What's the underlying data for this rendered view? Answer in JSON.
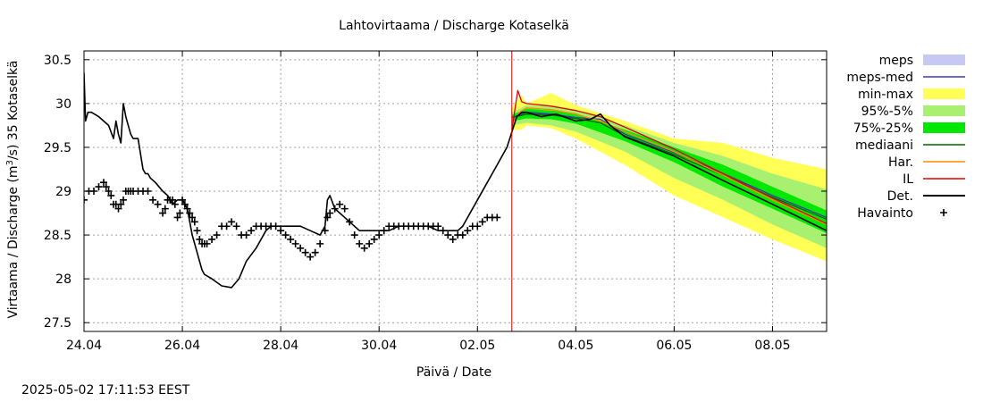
{
  "chart_data": {
    "type": "line",
    "title": "Lahtovirtaama / Discharge  Kotaselkä",
    "xlabel": "Päivä / Date",
    "ylabel_prefix": "Virtaama / Discharge (m",
    "ylabel_sup": "3",
    "ylabel_suffix": "/s)  35 Kotaselkä",
    "timestamp": "2025-05-02 17:11:53 EEST",
    "x_unit": "days since 24.04 00:00",
    "xlim": [
      0,
      15.1
    ],
    "ylim": [
      27.4,
      30.6
    ],
    "x_ticks": [
      {
        "v": 0,
        "label": "24.04"
      },
      {
        "v": 2,
        "label": "26.04"
      },
      {
        "v": 4,
        "label": "28.04"
      },
      {
        "v": 6,
        "label": "30.04"
      },
      {
        "v": 8,
        "label": "02.05"
      },
      {
        "v": 10,
        "label": "04.05"
      },
      {
        "v": 12,
        "label": "06.05"
      },
      {
        "v": 14,
        "label": "08.05"
      }
    ],
    "y_ticks": [
      {
        "v": 27.5,
        "label": "27.5"
      },
      {
        "v": 28,
        "label": "28"
      },
      {
        "v": 28.5,
        "label": "28.5"
      },
      {
        "v": 29,
        "label": "29"
      },
      {
        "v": 29.5,
        "label": "29.5"
      },
      {
        "v": 30,
        "label": "30"
      },
      {
        "v": 30.5,
        "label": "30.5"
      }
    ],
    "now_x": 8.7,
    "legend": [
      {
        "key": "meps",
        "label": "meps",
        "kind": "band",
        "color": "#c8c8f4"
      },
      {
        "key": "meps_med",
        "label": "meps-med",
        "kind": "line",
        "color": "#3a3ab0"
      },
      {
        "key": "minmax",
        "label": "min-max",
        "kind": "band",
        "color": "#ffff55"
      },
      {
        "key": "p95_5",
        "label": "95%-5%",
        "kind": "band",
        "color": "#a8f070"
      },
      {
        "key": "p75_25",
        "label": "75%-25%",
        "kind": "band",
        "color": "#00e800"
      },
      {
        "key": "mediaani",
        "label": "mediaani",
        "kind": "line",
        "color": "#006400"
      },
      {
        "key": "har",
        "label": "Har.",
        "kind": "line",
        "color": "#ff8c00"
      },
      {
        "key": "il",
        "label": "IL",
        "kind": "line",
        "color": "#e00000"
      },
      {
        "key": "det",
        "label": "Det.",
        "kind": "line",
        "color": "#000000"
      },
      {
        "key": "havainto",
        "label": "Havainto",
        "kind": "marker",
        "color": "#000000"
      }
    ],
    "bands": {
      "minmax": {
        "x": [
          8.7,
          8.9,
          9.0,
          9.5,
          10.0,
          11.0,
          12.0,
          13.0,
          14.0,
          15.1
        ],
        "low": [
          29.7,
          29.7,
          29.75,
          29.72,
          29.6,
          29.3,
          28.95,
          28.7,
          28.45,
          28.2
        ],
        "high": [
          29.95,
          30.1,
          30.0,
          30.12,
          29.98,
          29.8,
          29.6,
          29.55,
          29.38,
          29.25
        ]
      },
      "p95_5": {
        "x": [
          8.7,
          9.0,
          9.5,
          10.0,
          11.0,
          12.0,
          13.0,
          14.0,
          15.1
        ],
        "low": [
          29.75,
          29.78,
          29.75,
          29.68,
          29.45,
          29.15,
          28.9,
          28.62,
          28.35
        ],
        "high": [
          29.9,
          29.98,
          29.97,
          29.93,
          29.75,
          29.55,
          29.4,
          29.2,
          29.02
        ]
      },
      "p75_25": {
        "x": [
          8.7,
          9.0,
          9.5,
          10.0,
          11.0,
          12.0,
          13.0,
          14.0,
          15.1
        ],
        "low": [
          29.8,
          29.83,
          29.82,
          29.77,
          29.57,
          29.33,
          29.05,
          28.8,
          28.52
        ],
        "high": [
          29.87,
          29.94,
          29.92,
          29.89,
          29.7,
          29.5,
          29.3,
          29.05,
          28.78
        ]
      }
    },
    "series": [
      {
        "key": "mediaani",
        "x": [
          8.7,
          9.0,
          9.5,
          10.0,
          10.5,
          11.0,
          12.0,
          13.0,
          14.0,
          15.1
        ],
        "y": [
          29.84,
          29.88,
          29.87,
          29.83,
          29.78,
          29.63,
          29.42,
          29.18,
          28.93,
          28.68
        ]
      },
      {
        "key": "meps_med",
        "x": [
          8.7,
          9.0,
          9.5,
          10.0,
          10.5,
          11.0,
          12.0,
          13.0,
          14.0,
          15.1
        ],
        "y": [
          29.84,
          29.9,
          29.88,
          29.84,
          29.82,
          29.65,
          29.44,
          29.2,
          28.95,
          28.7
        ]
      },
      {
        "key": "har",
        "x": [
          8.7,
          8.85,
          9.0,
          9.5,
          10.0,
          10.5,
          11.0,
          12.0,
          13.0,
          14.0,
          15.1
        ],
        "y": [
          29.7,
          29.9,
          29.95,
          29.93,
          29.88,
          29.8,
          29.68,
          29.45,
          29.18,
          28.9,
          28.62
        ]
      },
      {
        "key": "il",
        "x": [
          8.7,
          8.82,
          8.9,
          9.0,
          9.5,
          10.0,
          10.5,
          11.0,
          12.0,
          13.0,
          14.0,
          15.1
        ],
        "y": [
          29.7,
          30.15,
          30.02,
          30.0,
          29.97,
          29.92,
          29.85,
          29.73,
          29.48,
          29.2,
          28.92,
          28.63
        ]
      },
      {
        "key": "det",
        "x": [
          0.0,
          0.03,
          0.08,
          0.15,
          0.3,
          0.5,
          0.6,
          0.65,
          0.7,
          0.75,
          0.8,
          0.85,
          0.9,
          0.95,
          1.0,
          1.1,
          1.2,
          1.25,
          1.3,
          1.35,
          1.45,
          1.6,
          1.7,
          1.8,
          1.9,
          2.0,
          2.1,
          2.2,
          2.3,
          2.35,
          2.4,
          2.45,
          2.6,
          2.8,
          3.0,
          3.15,
          3.3,
          3.5,
          3.6,
          3.7,
          3.8,
          4.0,
          4.2,
          4.4,
          4.6,
          4.8,
          4.9,
          4.95,
          5.0,
          5.1,
          5.2,
          5.4,
          5.6,
          5.8,
          6.0,
          6.2,
          6.4,
          6.6,
          6.8,
          7.0,
          7.2,
          7.4,
          7.6,
          7.7,
          7.8,
          8.0,
          8.2,
          8.4,
          8.6,
          8.8,
          8.9,
          9.0,
          9.3,
          9.6,
          10.0,
          10.3,
          10.5,
          10.7,
          11.0,
          12.0,
          13.0,
          14.0,
          15.1
        ],
        "y": [
          30.35,
          29.8,
          29.9,
          29.9,
          29.85,
          29.75,
          29.6,
          29.8,
          29.65,
          29.55,
          30.0,
          29.85,
          29.75,
          29.65,
          29.6,
          29.6,
          29.25,
          29.2,
          29.2,
          29.15,
          29.1,
          29.0,
          28.95,
          28.85,
          28.9,
          28.9,
          28.8,
          28.5,
          28.3,
          28.2,
          28.1,
          28.05,
          28.0,
          27.92,
          27.9,
          28.0,
          28.2,
          28.35,
          28.45,
          28.55,
          28.6,
          28.6,
          28.6,
          28.6,
          28.55,
          28.5,
          28.6,
          28.9,
          28.95,
          28.8,
          28.75,
          28.65,
          28.55,
          28.55,
          28.55,
          28.55,
          28.6,
          28.6,
          28.6,
          28.6,
          28.55,
          28.55,
          28.55,
          28.6,
          28.7,
          28.9,
          29.1,
          29.3,
          29.5,
          29.85,
          29.9,
          29.9,
          29.85,
          29.88,
          29.8,
          29.82,
          29.88,
          29.75,
          29.62,
          29.4,
          29.12,
          28.85,
          28.55
        ]
      }
    ],
    "havainto": {
      "x": [
        0.0,
        0.1,
        0.2,
        0.3,
        0.4,
        0.45,
        0.5,
        0.55,
        0.6,
        0.65,
        0.7,
        0.75,
        0.8,
        0.85,
        0.9,
        0.95,
        1.0,
        1.1,
        1.2,
        1.3,
        1.4,
        1.5,
        1.6,
        1.65,
        1.7,
        1.75,
        1.8,
        1.85,
        1.9,
        1.95,
        2.0,
        2.05,
        2.1,
        2.15,
        2.2,
        2.25,
        2.3,
        2.35,
        2.4,
        2.45,
        2.5,
        2.6,
        2.7,
        2.8,
        2.9,
        3.0,
        3.1,
        3.2,
        3.3,
        3.4,
        3.5,
        3.6,
        3.7,
        3.8,
        3.9,
        4.0,
        4.1,
        4.2,
        4.3,
        4.4,
        4.5,
        4.6,
        4.7,
        4.8,
        4.9,
        4.95,
        5.0,
        5.1,
        5.2,
        5.3,
        5.4,
        5.5,
        5.6,
        5.7,
        5.8,
        5.9,
        6.0,
        6.1,
        6.2,
        6.3,
        6.4,
        6.5,
        6.6,
        6.7,
        6.8,
        6.9,
        7.0,
        7.1,
        7.2,
        7.3,
        7.4,
        7.5,
        7.6,
        7.7,
        7.8,
        7.9,
        8.0,
        8.1,
        8.2,
        8.3,
        8.4
      ],
      "y": [
        28.9,
        29.0,
        29.0,
        29.05,
        29.1,
        29.05,
        29.0,
        28.95,
        28.85,
        28.85,
        28.8,
        28.85,
        28.9,
        29.0,
        29.0,
        29.0,
        29.0,
        29.0,
        29.0,
        29.0,
        28.9,
        28.85,
        28.75,
        28.8,
        28.9,
        28.9,
        28.9,
        28.85,
        28.7,
        28.75,
        28.9,
        28.85,
        28.8,
        28.75,
        28.7,
        28.65,
        28.55,
        28.45,
        28.4,
        28.4,
        28.4,
        28.45,
        28.5,
        28.6,
        28.6,
        28.65,
        28.6,
        28.5,
        28.5,
        28.55,
        28.6,
        28.6,
        28.6,
        28.6,
        28.6,
        28.55,
        28.5,
        28.45,
        28.4,
        28.35,
        28.3,
        28.25,
        28.3,
        28.4,
        28.55,
        28.7,
        28.75,
        28.8,
        28.85,
        28.8,
        28.65,
        28.5,
        28.4,
        28.35,
        28.4,
        28.45,
        28.5,
        28.55,
        28.6,
        28.6,
        28.6,
        28.6,
        28.6,
        28.6,
        28.6,
        28.6,
        28.6,
        28.6,
        28.6,
        28.55,
        28.5,
        28.45,
        28.5,
        28.5,
        28.55,
        28.6,
        28.6,
        28.65,
        28.7,
        28.7,
        28.7
      ]
    }
  }
}
